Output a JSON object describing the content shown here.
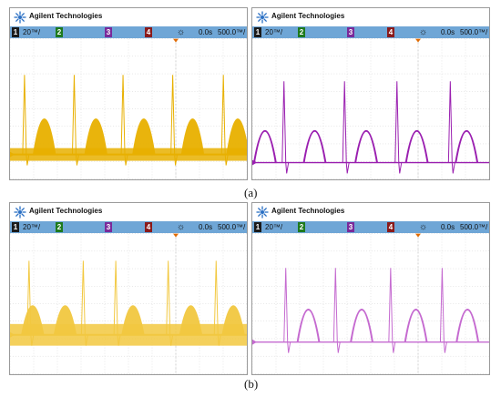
{
  "brand": "Agilent Technologies",
  "colors": {
    "status_bar": "#6fa6d6",
    "ch1": "#e8b000",
    "ch1_light": "#f2c840",
    "ch2": "#9a1fb0",
    "ch2_light": "#c56ad0",
    "ch3": "#9b3ab8",
    "ch4": "#b01818",
    "grid": "#cfcfcf",
    "trigger_marker": "#e06a00"
  },
  "icons": [
    "agilent-spark-logo",
    "trigger-sun-icon",
    "trigger-marker-icon"
  ],
  "panels": [
    {
      "channels": [
        "1",
        "2",
        "3",
        "4"
      ],
      "scale": "20™/",
      "delay": "0.0s",
      "timebase": "500.0™/",
      "trace": "ch1"
    },
    {
      "channels": [
        "1",
        "2",
        "3",
        "4"
      ],
      "scale": "20™/",
      "delay": "0.0s",
      "timebase": "500.0™/",
      "trace": "ch2"
    },
    {
      "channels": [
        "1",
        "2",
        "3",
        "4"
      ],
      "scale": "20™/",
      "delay": "0.0s",
      "timebase": "500.0™/",
      "trace": "ch1_light"
    },
    {
      "channels": [
        "1",
        "2",
        "3",
        "4"
      ],
      "scale": "20™/",
      "delay": "0.0s",
      "timebase": "500.0™/",
      "trace": "ch2_light"
    }
  ],
  "captions": [
    "(a)",
    "(b)"
  ]
}
